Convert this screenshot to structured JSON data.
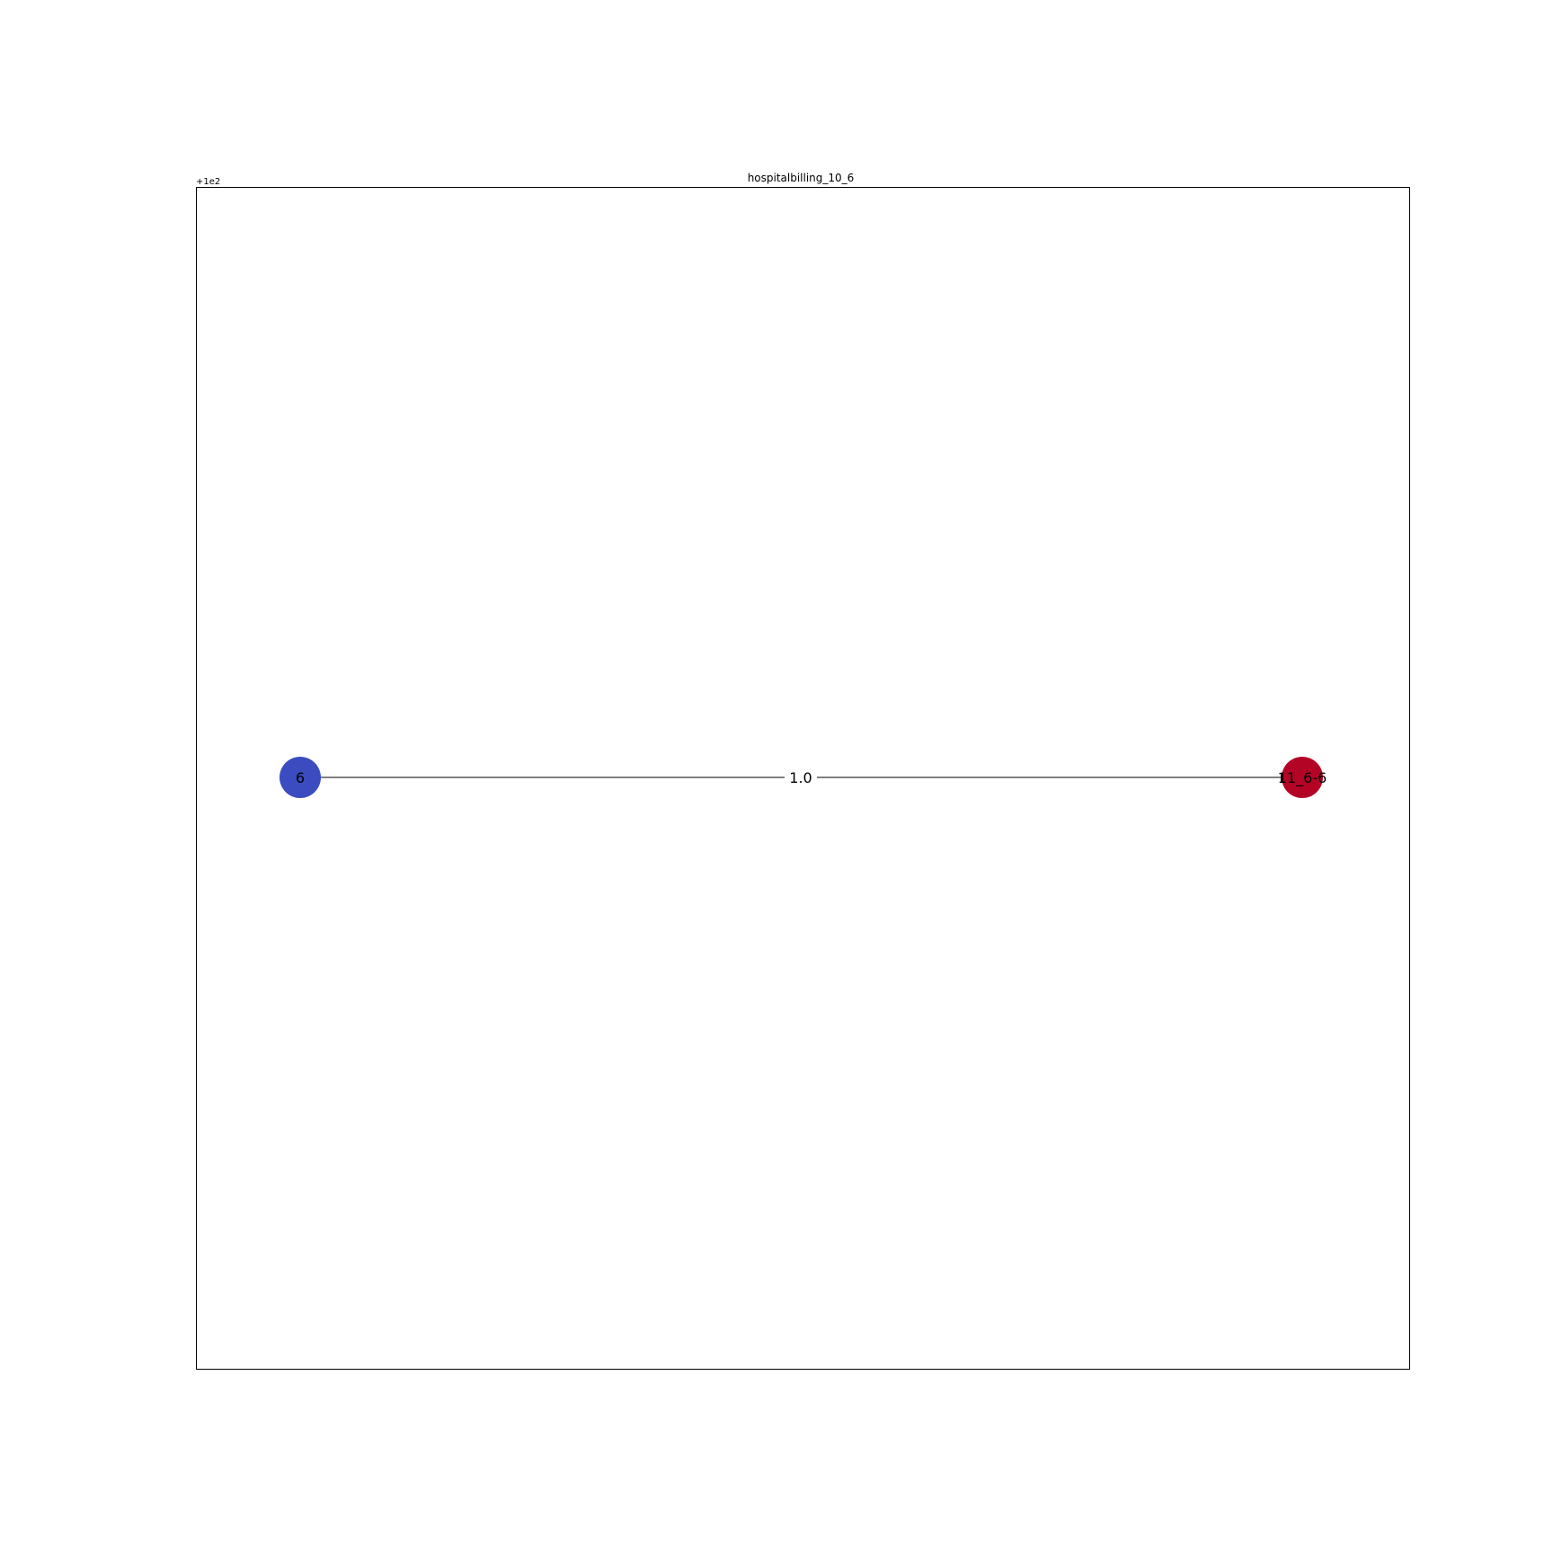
{
  "title": "hospitalbilling_10_6",
  "axis_offset_label": "+1e2",
  "nodes": [
    {
      "id": "n0",
      "label": "6",
      "color": "#3b4cc0"
    },
    {
      "id": "n1",
      "label": "11_6-6",
      "color": "#b40426"
    }
  ],
  "edges": [
    {
      "from": "n0",
      "to": "n1",
      "label": "1.0",
      "color": "#000000"
    }
  ]
}
